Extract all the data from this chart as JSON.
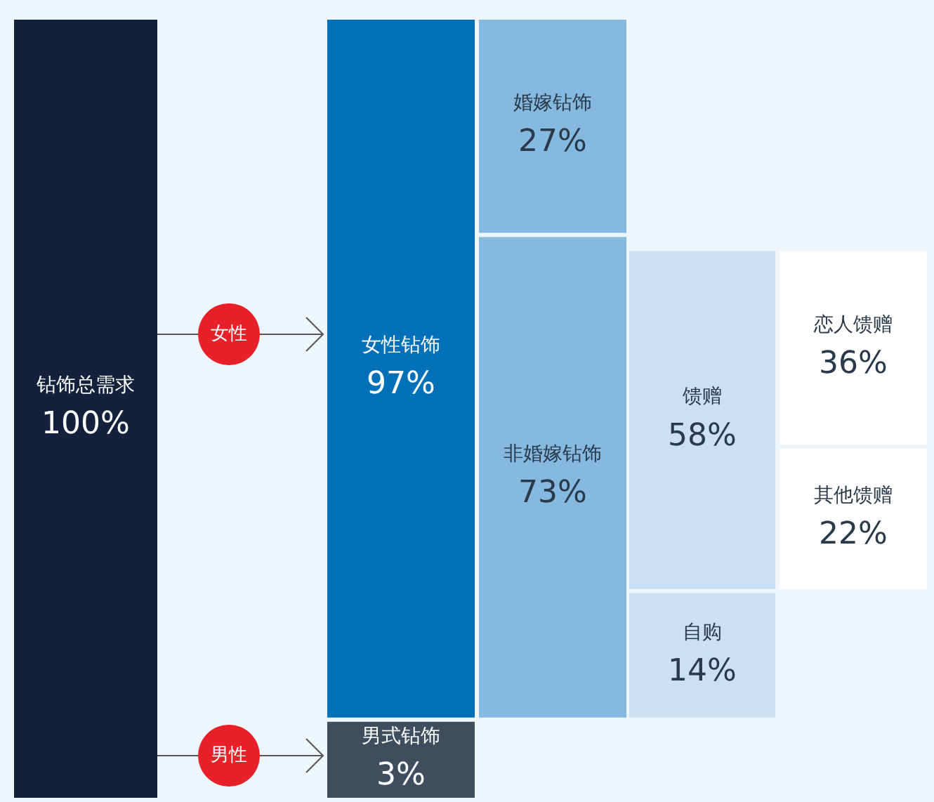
{
  "chart_data": {
    "type": "other",
    "categories": [
      "钻饰总需求",
      "女性钻饰",
      "男式钻饰",
      "婚嫁钻饰",
      "非婚嫁钻饰",
      "馈赠",
      "自购",
      "恋人馈赠",
      "其他馈赠"
    ],
    "values": [
      100,
      97,
      3,
      27,
      73,
      58,
      14,
      36,
      22
    ],
    "value_labels": [
      "100%",
      "97%",
      "3%",
      "27%",
      "73%",
      "58%",
      "14%",
      "36%",
      "22%"
    ],
    "colors": [
      "#14213d",
      "#0070b8",
      "#3f4e5e",
      "#85b9e0",
      "#85b9e0",
      "#c9e1f3",
      "#c9e1f3",
      "#ffffff",
      "#ffffff"
    ],
    "annotations": [
      "女性",
      "男性"
    ]
  }
}
